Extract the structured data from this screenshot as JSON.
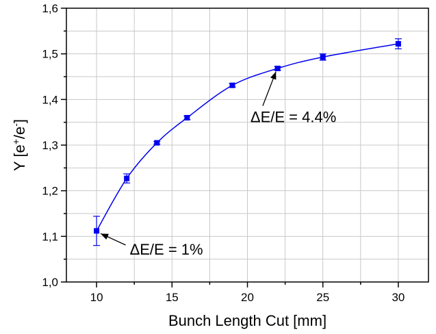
{
  "chart_data": {
    "type": "scatter",
    "xlabel": "Bunch Length Cut [mm]",
    "ylabel": {
      "base": "Y [e",
      "sup1": "+",
      "mid": "/e",
      "sup2": "-",
      "end": "]"
    },
    "xlim": [
      8,
      32
    ],
    "ylim": [
      1.0,
      1.6
    ],
    "x_ticks": [
      10,
      15,
      20,
      25,
      30
    ],
    "x_tick_labels": [
      "10",
      "15",
      "20",
      "25",
      "30"
    ],
    "y_ticks": [
      1.0,
      1.1,
      1.2,
      1.3,
      1.4,
      1.5,
      1.6
    ],
    "y_tick_labels": [
      "1,0",
      "1,1",
      "1,2",
      "1,3",
      "1,4",
      "1,5",
      "1,6"
    ],
    "grid": true,
    "colors": {
      "series": "#0000ee",
      "grid": "#c8c8c8",
      "axis": "#000000"
    },
    "series": [
      {
        "x": [
          10,
          12,
          14,
          16,
          19,
          22,
          25,
          30
        ],
        "y": [
          1.112,
          1.227,
          1.305,
          1.36,
          1.431,
          1.468,
          1.493,
          1.522
        ],
        "err": [
          0.032,
          0.01,
          0.003,
          0.004,
          0.004,
          0.004,
          0.007,
          0.011
        ]
      }
    ],
    "fit_curve": true,
    "annotations": [
      {
        "text": "ΔE/E = 1%",
        "point": [
          10,
          1.112
        ],
        "text_at": [
          12.2,
          1.06
        ]
      },
      {
        "text": "ΔE/E = 4.4%",
        "point": [
          21.8,
          1.467
        ],
        "text_at": [
          20.2,
          1.35
        ]
      }
    ]
  }
}
